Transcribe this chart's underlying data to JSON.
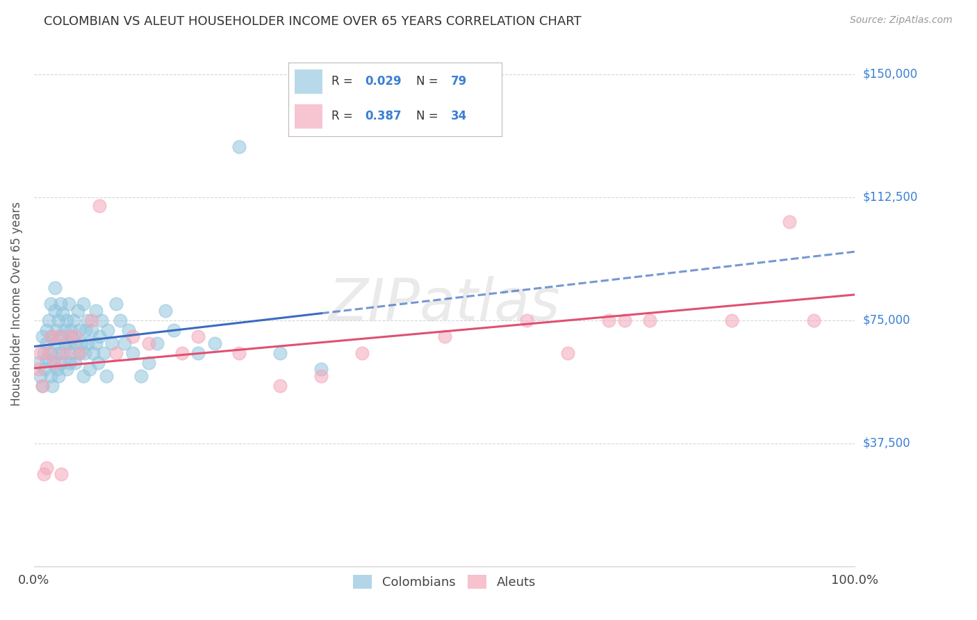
{
  "title": "COLOMBIAN VS ALEUT HOUSEHOLDER INCOME OVER 65 YEARS CORRELATION CHART",
  "source": "Source: ZipAtlas.com",
  "ylabel": "Householder Income Over 65 years",
  "xlim": [
    0,
    1.0
  ],
  "ylim": [
    0,
    160000
  ],
  "ytick_labels": [
    "$37,500",
    "$75,000",
    "$112,500",
    "$150,000"
  ],
  "ytick_values": [
    37500,
    75000,
    112500,
    150000
  ],
  "watermark_text": "ZIPatlas",
  "blue_color": "#92c5de",
  "pink_color": "#f4a7b9",
  "blue_line_color": "#3a6cbf",
  "pink_line_color": "#e05070",
  "right_tick_color": "#3a7fd5",
  "background_color": "#ffffff",
  "grid_color": "#cccccc",
  "blue_scatter": {
    "x": [
      0.005,
      0.008,
      0.01,
      0.01,
      0.012,
      0.013,
      0.015,
      0.015,
      0.015,
      0.018,
      0.02,
      0.02,
      0.02,
      0.022,
      0.022,
      0.023,
      0.025,
      0.025,
      0.025,
      0.027,
      0.028,
      0.03,
      0.03,
      0.03,
      0.032,
      0.033,
      0.033,
      0.035,
      0.035,
      0.037,
      0.038,
      0.04,
      0.04,
      0.042,
      0.042,
      0.043,
      0.045,
      0.045,
      0.047,
      0.048,
      0.05,
      0.05,
      0.053,
      0.055,
      0.055,
      0.058,
      0.06,
      0.06,
      0.062,
      0.063,
      0.065,
      0.065,
      0.068,
      0.07,
      0.072,
      0.075,
      0.075,
      0.078,
      0.08,
      0.082,
      0.085,
      0.088,
      0.09,
      0.095,
      0.1,
      0.105,
      0.11,
      0.115,
      0.12,
      0.13,
      0.14,
      0.15,
      0.16,
      0.17,
      0.2,
      0.22,
      0.25,
      0.3,
      0.35
    ],
    "y": [
      62000,
      58000,
      70000,
      55000,
      65000,
      60000,
      72000,
      68000,
      63000,
      75000,
      80000,
      58000,
      65000,
      70000,
      55000,
      62000,
      85000,
      78000,
      68000,
      72000,
      60000,
      75000,
      65000,
      58000,
      80000,
      70000,
      62000,
      77000,
      65000,
      72000,
      68000,
      75000,
      60000,
      80000,
      68000,
      62000,
      72000,
      65000,
      70000,
      75000,
      68000,
      62000,
      78000,
      72000,
      65000,
      68000,
      80000,
      58000,
      65000,
      72000,
      75000,
      68000,
      60000,
      72000,
      65000,
      78000,
      68000,
      62000,
      70000,
      75000,
      65000,
      58000,
      72000,
      68000,
      80000,
      75000,
      68000,
      72000,
      65000,
      58000,
      62000,
      68000,
      78000,
      72000,
      65000,
      68000,
      128000,
      65000,
      60000
    ]
  },
  "pink_scatter": {
    "x": [
      0.005,
      0.008,
      0.01,
      0.012,
      0.015,
      0.018,
      0.02,
      0.025,
      0.03,
      0.033,
      0.038,
      0.042,
      0.05,
      0.055,
      0.07,
      0.08,
      0.1,
      0.12,
      0.14,
      0.18,
      0.2,
      0.25,
      0.3,
      0.35,
      0.4,
      0.5,
      0.6,
      0.65,
      0.7,
      0.72,
      0.75,
      0.85,
      0.92,
      0.95
    ],
    "y": [
      60000,
      65000,
      55000,
      28000,
      30000,
      65000,
      70000,
      62000,
      70000,
      28000,
      65000,
      70000,
      70000,
      65000,
      75000,
      110000,
      65000,
      70000,
      68000,
      65000,
      70000,
      65000,
      55000,
      58000,
      65000,
      70000,
      75000,
      65000,
      75000,
      75000,
      75000,
      75000,
      105000,
      75000
    ]
  },
  "blue_R": 0.029,
  "blue_N": 79,
  "pink_R": 0.387,
  "pink_N": 34
}
